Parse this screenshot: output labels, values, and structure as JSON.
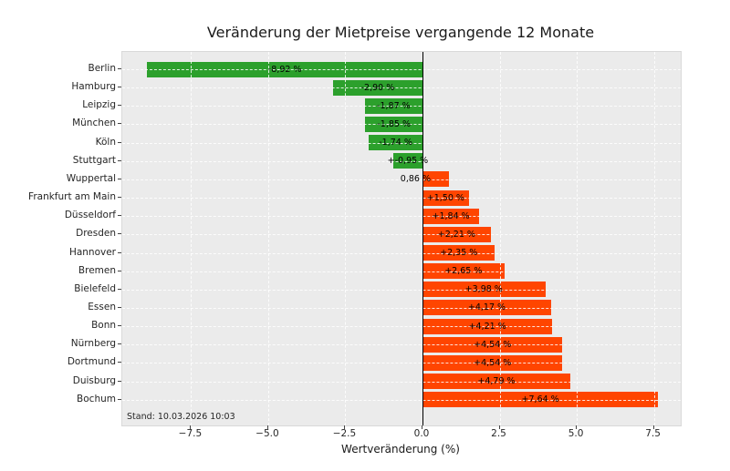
{
  "title": "Veränderung der Mietpreise vergangende 12 Monate",
  "stand_note": "Stand: 10.03.2026 10:03",
  "chart_data": {
    "type": "bar",
    "orientation": "horizontal",
    "title": "Veränderung der Mietpreise vergangende 12 Monate",
    "xlabel": "Wertveränderung (%)",
    "ylabel": "",
    "xlim": [
      -9.73,
      8.37
    ],
    "grid": true,
    "legend": false,
    "annotation": "Stand: 10.03.2026 10:03",
    "xticks": [
      {
        "value": -7.5,
        "label": "−7.5"
      },
      {
        "value": -5.0,
        "label": "−5.0"
      },
      {
        "value": -2.5,
        "label": "−2.5"
      },
      {
        "value": 0.0,
        "label": "0.0"
      },
      {
        "value": 2.5,
        "label": "2.5"
      },
      {
        "value": 5.0,
        "label": "5.0"
      },
      {
        "value": 7.5,
        "label": "7.5"
      }
    ],
    "points": [
      {
        "city": "Berlin",
        "value": -8.92,
        "label": "-8,92 %",
        "label_outside": false
      },
      {
        "city": "Hamburg",
        "value": -2.9,
        "label": "-2,90 %",
        "label_outside": false
      },
      {
        "city": "Leipzig",
        "value": -1.87,
        "label": "-1,87 %",
        "label_outside": false
      },
      {
        "city": "München",
        "value": -1.85,
        "label": "-1,85 %",
        "label_outside": false
      },
      {
        "city": "Köln",
        "value": -1.74,
        "label": "-1,74 %",
        "label_outside": false
      },
      {
        "city": "Stuttgart",
        "value": -0.95,
        "label": "+-0,95 %",
        "label_outside": false
      },
      {
        "city": "Wuppertal",
        "value": 0.86,
        "label": "0,86 %",
        "label_outside": true
      },
      {
        "city": "Frankfurt am Main",
        "value": 1.5,
        "label": "+1,50 %",
        "label_outside": false
      },
      {
        "city": "Düsseldorf",
        "value": 1.84,
        "label": "+1,84 %",
        "label_outside": false
      },
      {
        "city": "Dresden",
        "value": 2.21,
        "label": "+2,21 %",
        "label_outside": false
      },
      {
        "city": "Hannover",
        "value": 2.35,
        "label": "+2,35 %",
        "label_outside": false
      },
      {
        "city": "Bremen",
        "value": 2.65,
        "label": "+2,65 %",
        "label_outside": false
      },
      {
        "city": "Bielefeld",
        "value": 3.98,
        "label": "+3,98 %",
        "label_outside": false
      },
      {
        "city": "Essen",
        "value": 4.17,
        "label": "+4,17 %",
        "label_outside": false
      },
      {
        "city": "Bonn",
        "value": 4.21,
        "label": "+4,21 %",
        "label_outside": false
      },
      {
        "city": "Nürnberg",
        "value": 4.54,
        "label": "+4,54 %",
        "label_outside": false
      },
      {
        "city": "Dortmund",
        "value": 4.54,
        "label": "+4,54 %",
        "label_outside": false
      },
      {
        "city": "Duisburg",
        "value": 4.79,
        "label": "+4,79 %",
        "label_outside": false
      },
      {
        "city": "Bochum",
        "value": 7.64,
        "label": "+7,64 %",
        "label_outside": false
      }
    ],
    "colors": {
      "negative_bar": "#2ca02c",
      "positive_bar": "#ff4500",
      "plot_background": "#ebebeb",
      "gridline": "#ffffff",
      "zero_line": "#000000",
      "text": "#262626"
    }
  }
}
